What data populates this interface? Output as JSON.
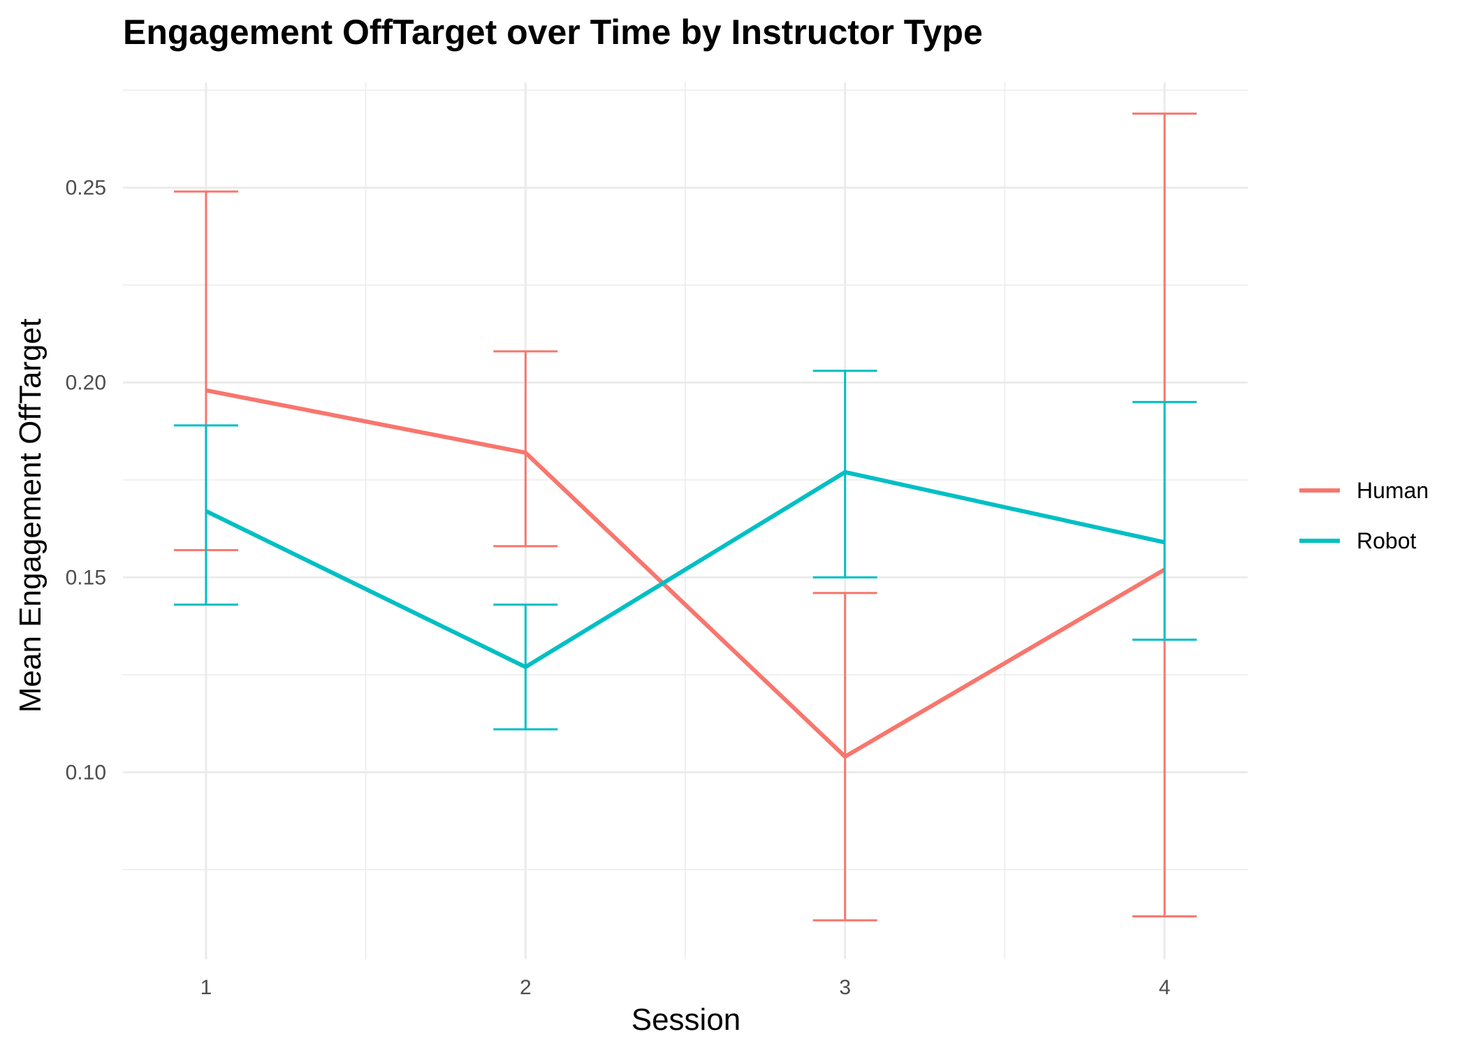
{
  "chart_data": {
    "type": "line",
    "title": "Engagement OffTarget over Time by Instructor Type",
    "xlabel": "Session",
    "ylabel": "Mean Engagement OffTarget",
    "x": [
      1,
      2,
      3,
      4
    ],
    "x_tick_labels": [
      "1",
      "2",
      "3",
      "4"
    ],
    "xlim": [
      0.74,
      4.26
    ],
    "ylim": [
      0.052,
      0.277
    ],
    "y_ticks": [
      0.1,
      0.15,
      0.2,
      0.25
    ],
    "y_tick_labels": [
      "0.10",
      "0.15",
      "0.20",
      "0.25"
    ],
    "grid": true,
    "legend_position": "right",
    "series": [
      {
        "name": "Human",
        "color": "#F8766D",
        "values": [
          0.198,
          0.182,
          0.104,
          0.152
        ],
        "error_low": [
          0.157,
          0.158,
          0.062,
          0.063
        ],
        "error_high": [
          0.249,
          0.208,
          0.146,
          0.269
        ]
      },
      {
        "name": "Robot",
        "color": "#00BFC4",
        "values": [
          0.167,
          0.127,
          0.177,
          0.159
        ],
        "error_low": [
          0.143,
          0.111,
          0.15,
          0.134
        ],
        "error_high": [
          0.189,
          0.143,
          0.203,
          0.195
        ]
      }
    ]
  }
}
